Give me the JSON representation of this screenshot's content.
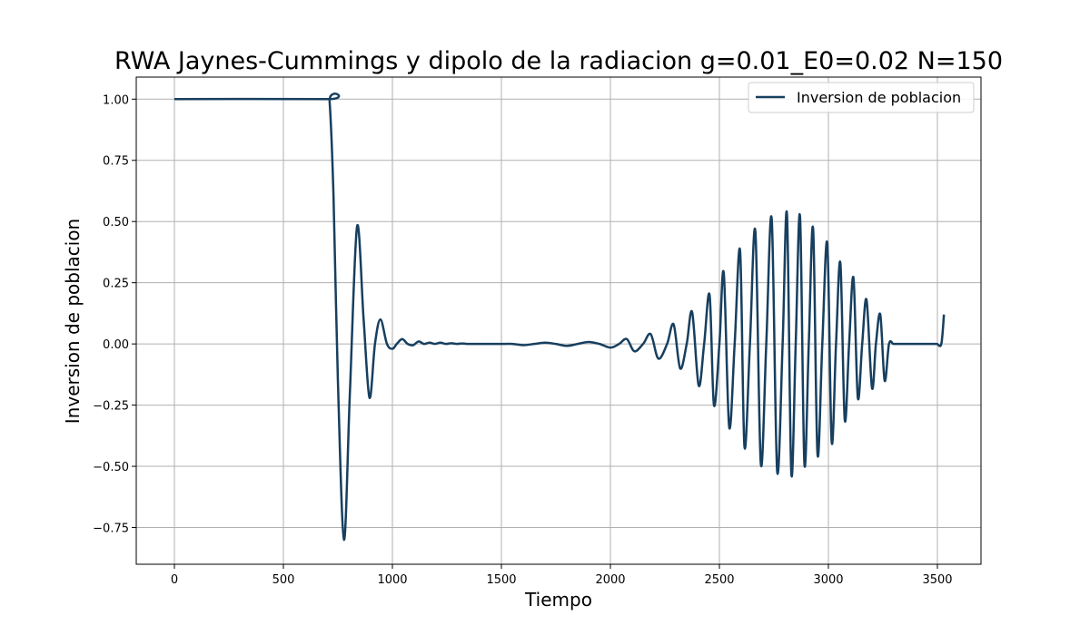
{
  "chart_data": {
    "type": "line",
    "title": "RWA Jaynes-Cummings y dipolo de la radiacion g=0.01_E0=0.02 N=150",
    "xlabel": "Tiempo",
    "ylabel": "Inversion de poblacion",
    "xlim": [
      -175,
      3700
    ],
    "ylim": [
      -0.9,
      1.09
    ],
    "xticks": [
      0,
      500,
      1000,
      1500,
      2000,
      2500,
      3000,
      3500
    ],
    "xtick_labels": [
      "0",
      "500",
      "1000",
      "1500",
      "2000",
      "2500",
      "3000",
      "3500"
    ],
    "yticks": [
      -0.75,
      -0.5,
      -0.25,
      0.0,
      0.25,
      0.5,
      0.75,
      1.0
    ],
    "ytick_labels": [
      "−0.75",
      "−0.50",
      "−0.25",
      "0.00",
      "0.25",
      "0.50",
      "0.75",
      "1.00"
    ],
    "grid": true,
    "legend_position": "top-right",
    "series": [
      {
        "name": "Inversion de poblacion",
        "color": "#173f5f",
        "x": [
          0,
          700,
          712,
          730,
          750,
          778,
          805,
          838,
          868,
          895,
          920,
          945,
          975,
          1000,
          1020,
          1045,
          1070,
          1095,
          1120,
          1145,
          1170,
          1195,
          1220,
          1245,
          1270,
          1295,
          1320,
          1350,
          1400,
          1450,
          1500,
          1550,
          1600,
          1650,
          1700,
          1750,
          1800,
          1850,
          1900,
          1950,
          2000,
          2040,
          2075,
          2110,
          2150,
          2185,
          2220,
          2260,
          2290,
          2320,
          2350,
          2375,
          2405,
          2430,
          2455,
          2475,
          2500,
          2520,
          2545,
          2570,
          2595,
          2615,
          2640,
          2665,
          2690,
          2715,
          2740,
          2765,
          2790,
          2810,
          2830,
          2850,
          2870,
          2890,
          2910,
          2930,
          2950,
          2972,
          2995,
          3015,
          3035,
          3055,
          3075,
          3095,
          3115,
          3135,
          3155,
          3175,
          3200,
          3218,
          3238,
          3258,
          3278,
          3298,
          3318,
          3338,
          3358,
          3378,
          3398,
          3418,
          3438,
          3458,
          3478,
          3498,
          3518,
          3530
        ],
        "y": [
          1.0,
          1.0,
          0.99,
          0.6,
          -0.15,
          -0.8,
          -0.2,
          0.48,
          0.1,
          -0.22,
          0.0,
          0.1,
          0.0,
          -0.02,
          0.0,
          0.02,
          0.0,
          -0.005,
          0.01,
          0.0,
          0.005,
          0.0,
          0.005,
          0.0,
          0.003,
          0.0,
          0.002,
          0.0,
          0.0,
          0.0,
          0.0,
          0.0,
          -0.005,
          0.0,
          0.005,
          0.0,
          -0.008,
          0.0,
          0.008,
          0.0,
          -0.015,
          0.0,
          0.02,
          -0.03,
          0.0,
          0.04,
          -0.06,
          0.0,
          0.08,
          -0.1,
          0.0,
          0.13,
          -0.17,
          0.0,
          0.2,
          -0.25,
          0.0,
          0.29,
          -0.34,
          0.0,
          0.38,
          -0.42,
          0.0,
          0.46,
          -0.49,
          0.0,
          0.51,
          -0.52,
          0.0,
          0.53,
          -0.53,
          0.0,
          0.52,
          -0.49,
          0.0,
          0.47,
          -0.45,
          0.0,
          0.41,
          -0.4,
          0.0,
          0.33,
          -0.31,
          0.0,
          0.27,
          -0.22,
          0.0,
          0.18,
          -0.18,
          0.0,
          0.12,
          -0.15,
          0.0,
          0.0,
          0.0,
          0.0,
          0.0,
          0.0,
          0.0,
          0.0,
          0.0,
          0.0,
          0.0,
          0.0,
          0.0,
          0.12
        ]
      }
    ]
  }
}
